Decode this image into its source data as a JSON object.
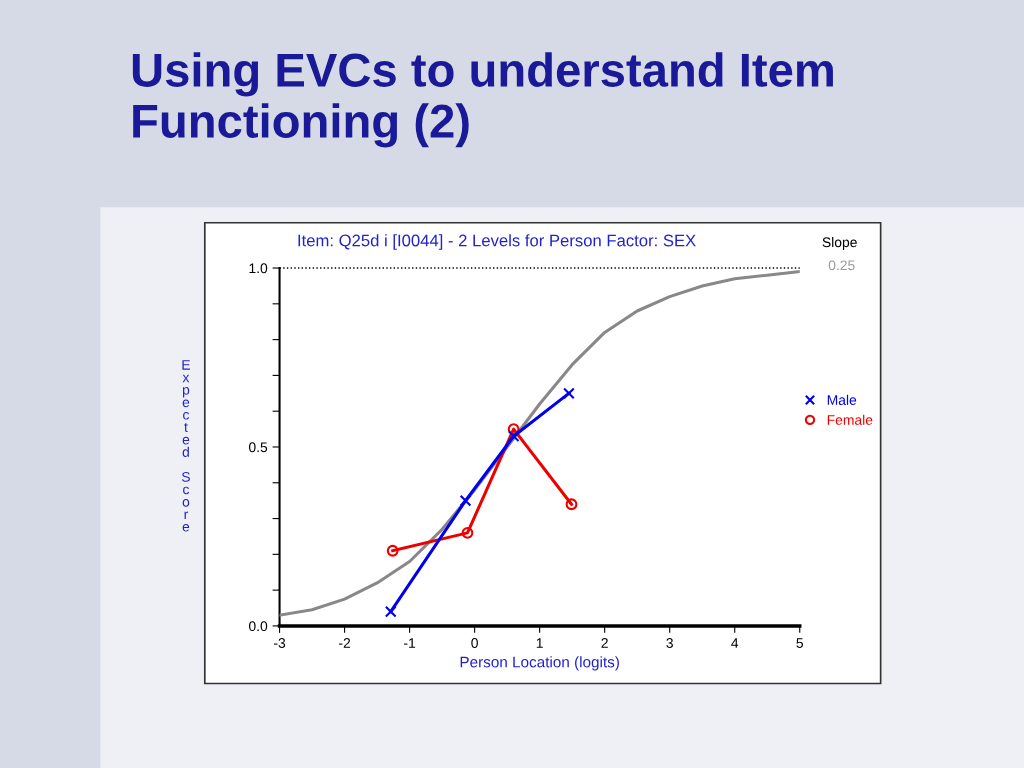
{
  "chart_data": {
    "type": "line",
    "title": "Using EVCs to understand Item Functioning (2)",
    "subtitle": "Item: Q25d i [I0044] - 2 Levels for Person Factor: SEX",
    "xlabel": "Person Location (logits)",
    "ylabel": "Expected Score",
    "annotations": [
      "Slope",
      "0.25"
    ],
    "xlim": [
      -3,
      5
    ],
    "xticks": [
      -3,
      -2,
      -1,
      0,
      1,
      2,
      3,
      4,
      5
    ],
    "ylim": [
      0,
      1
    ],
    "yticks": [
      {
        "value": 0,
        "label": "0.0"
      },
      {
        "value": 0.1,
        "label": null
      },
      {
        "value": 0.2,
        "label": null
      },
      {
        "value": 0.3,
        "label": null
      },
      {
        "value": 0.4,
        "label": null
      },
      {
        "value": 0.5,
        "label": "0.5"
      },
      {
        "value": 0.6,
        "label": null
      },
      {
        "value": 0.7,
        "label": null
      },
      {
        "value": 0.8,
        "label": null
      },
      {
        "value": 0.9,
        "label": null
      },
      {
        "value": 1,
        "label": "1.0"
      }
    ],
    "grid": false,
    "legend": "right",
    "ref_lines": [
      {
        "axis": "y",
        "value": 1,
        "color": "#000000",
        "line_style": "dotted"
      }
    ],
    "series": [
      {
        "color": "#888888",
        "marker": "none",
        "x": [
          -3,
          -2.5,
          -2,
          -1.5,
          -1,
          -0.5,
          0,
          0.5,
          1,
          1.5,
          2,
          2.5,
          3,
          3.5,
          4,
          4.5,
          5
        ],
        "values": [
          0.03,
          0.045,
          0.075,
          0.12,
          0.18,
          0.27,
          0.38,
          0.5,
          0.62,
          0.73,
          0.82,
          0.88,
          0.92,
          0.95,
          0.97,
          0.98,
          0.99
        ]
      },
      {
        "name": "Male",
        "color": "#0000ee",
        "marker": "cross",
        "x": [
          -1.29,
          -0.14,
          0.6,
          1.45
        ],
        "values": [
          0.04,
          0.35,
          0.53,
          0.65
        ]
      },
      {
        "name": "Female",
        "color": "#ee0000",
        "marker": "circle",
        "x": [
          -1.26,
          -0.11,
          0.6,
          1.49
        ],
        "values": [
          0.21,
          0.26,
          0.55,
          0.34
        ]
      }
    ]
  }
}
